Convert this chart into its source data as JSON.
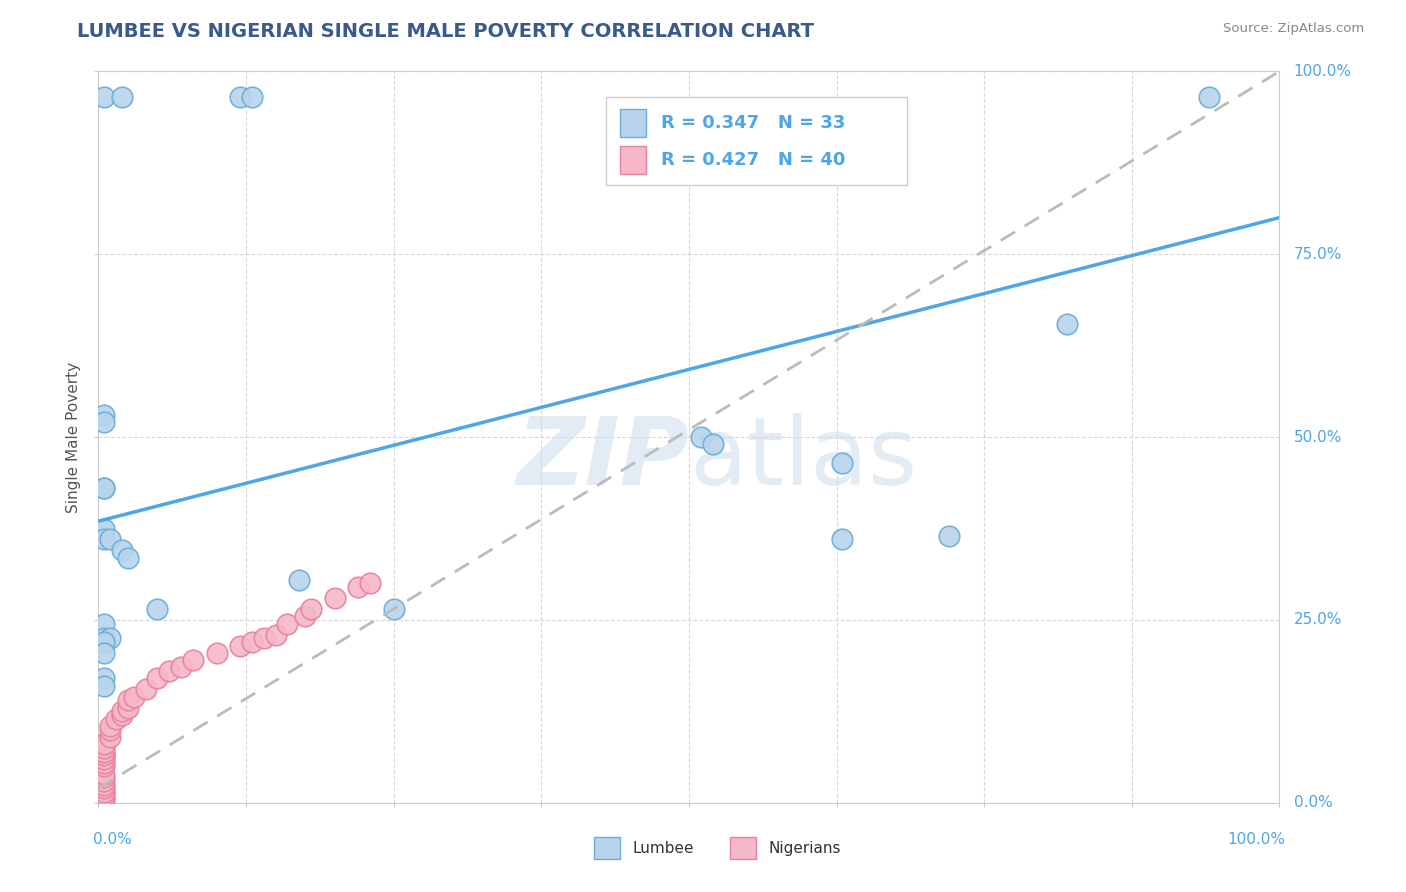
{
  "title": "LUMBEE VS NIGERIAN SINGLE MALE POVERTY CORRELATION CHART",
  "source": "Source: ZipAtlas.com",
  "ylabel": "Single Male Poverty",
  "lumbee_R": 0.347,
  "lumbee_N": 33,
  "nigerian_R": 0.427,
  "nigerian_N": 40,
  "lumbee_fill": "#b8d4ed",
  "lumbee_edge": "#6aaed6",
  "nigerian_fill": "#f5b8c8",
  "nigerian_edge": "#e8829a",
  "lumbee_line_color": "#4da6e8",
  "nigerian_line_color": "#e87ca0",
  "dashed_line_color": "#bbbbbb",
  "title_color": "#3a5a8c",
  "source_color": "#888888",
  "tick_label_color": "#4da6e8",
  "grid_color": "#d8d8d8",
  "watermark_color": "#ccdded",
  "lumbee_points": [
    [
      0.005,
      0.965
    ],
    [
      0.02,
      0.965
    ],
    [
      0.12,
      0.965
    ],
    [
      0.13,
      0.965
    ],
    [
      0.005,
      0.53
    ],
    [
      0.005,
      0.52
    ],
    [
      0.005,
      0.43
    ],
    [
      0.005,
      0.43
    ],
    [
      0.005,
      0.375
    ],
    [
      0.005,
      0.36
    ],
    [
      0.01,
      0.36
    ],
    [
      0.02,
      0.345
    ],
    [
      0.025,
      0.335
    ],
    [
      0.05,
      0.265
    ],
    [
      0.005,
      0.245
    ],
    [
      0.005,
      0.225
    ],
    [
      0.01,
      0.225
    ],
    [
      0.17,
      0.305
    ],
    [
      0.25,
      0.265
    ],
    [
      0.51,
      0.5
    ],
    [
      0.52,
      0.49
    ],
    [
      0.63,
      0.465
    ],
    [
      0.63,
      0.36
    ],
    [
      0.72,
      0.365
    ],
    [
      0.82,
      0.655
    ],
    [
      0.005,
      0.17
    ],
    [
      0.005,
      0.16
    ],
    [
      0.94,
      0.965
    ],
    [
      0.005,
      0.08
    ],
    [
      0.005,
      0.065
    ],
    [
      0.005,
      0.22
    ],
    [
      0.005,
      0.205
    ],
    [
      0.005,
      0.005
    ]
  ],
  "nigerian_points": [
    [
      0.005,
      0.005
    ],
    [
      0.005,
      0.01
    ],
    [
      0.005,
      0.015
    ],
    [
      0.005,
      0.02
    ],
    [
      0.005,
      0.025
    ],
    [
      0.005,
      0.03
    ],
    [
      0.005,
      0.035
    ],
    [
      0.005,
      0.04
    ],
    [
      0.005,
      0.05
    ],
    [
      0.005,
      0.055
    ],
    [
      0.005,
      0.06
    ],
    [
      0.005,
      0.065
    ],
    [
      0.005,
      0.07
    ],
    [
      0.005,
      0.075
    ],
    [
      0.005,
      0.08
    ],
    [
      0.01,
      0.09
    ],
    [
      0.01,
      0.1
    ],
    [
      0.01,
      0.105
    ],
    [
      0.015,
      0.115
    ],
    [
      0.02,
      0.12
    ],
    [
      0.02,
      0.125
    ],
    [
      0.025,
      0.13
    ],
    [
      0.025,
      0.14
    ],
    [
      0.03,
      0.145
    ],
    [
      0.04,
      0.155
    ],
    [
      0.05,
      0.17
    ],
    [
      0.06,
      0.18
    ],
    [
      0.07,
      0.185
    ],
    [
      0.08,
      0.195
    ],
    [
      0.1,
      0.205
    ],
    [
      0.12,
      0.215
    ],
    [
      0.13,
      0.22
    ],
    [
      0.14,
      0.225
    ],
    [
      0.15,
      0.23
    ],
    [
      0.16,
      0.245
    ],
    [
      0.175,
      0.255
    ],
    [
      0.18,
      0.265
    ],
    [
      0.2,
      0.28
    ],
    [
      0.22,
      0.295
    ],
    [
      0.23,
      0.3
    ]
  ],
  "lumbee_line": [
    0.0,
    1.0,
    0.385,
    0.8
  ],
  "nigerian_line_dashed": [
    0.0,
    1.0,
    0.02,
    1.0
  ]
}
